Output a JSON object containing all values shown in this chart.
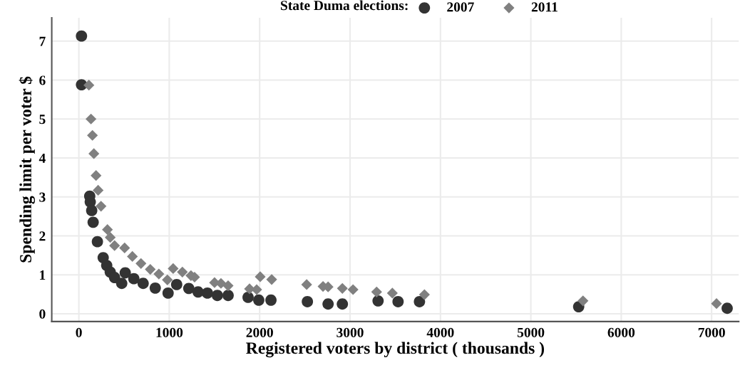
{
  "chart_data": {
    "type": "scatter",
    "xlabel": "Registered voters by district ( thousands )",
    "ylabel": "Spending limit per voter $",
    "legend_title": "State Duma elections:",
    "legend": "top",
    "xlim": [
      -300,
      7300
    ],
    "xticks": [
      0,
      1000,
      2000,
      3000,
      4000,
      5000,
      6000,
      7000
    ],
    "ylim": [
      -0.2,
      7.6
    ],
    "yticks": [
      0,
      1,
      2,
      3,
      4,
      5,
      6,
      7
    ],
    "grid": true,
    "series": [
      {
        "name": "2007",
        "color": "#333333",
        "marker": "circle",
        "x": [
          29,
          29,
          120,
          126,
          142,
          158,
          205,
          269,
          308,
          347,
          395,
          474,
          513,
          608,
          711,
          845,
          987,
          1082,
          1216,
          1319,
          1422,
          1532,
          1651,
          1872,
          1990,
          2125,
          2528,
          2757,
          2915,
          3310,
          3531,
          3768,
          5529,
          7172
        ],
        "values": [
          7.13,
          5.88,
          3.02,
          2.87,
          2.65,
          2.35,
          1.85,
          1.44,
          1.24,
          1.07,
          0.93,
          0.78,
          1.05,
          0.9,
          0.78,
          0.66,
          0.53,
          0.75,
          0.65,
          0.56,
          0.53,
          0.47,
          0.47,
          0.42,
          0.35,
          0.35,
          0.31,
          0.25,
          0.25,
          0.33,
          0.31,
          0.31,
          0.18,
          0.14
        ]
      },
      {
        "name": "2011",
        "color": "#808080",
        "marker": "diamond",
        "x": [
          111,
          134,
          150,
          166,
          190,
          213,
          245,
          316,
          347,
          395,
          506,
          592,
          687,
          790,
          885,
          979,
          1043,
          1145,
          1240,
          1280,
          1501,
          1572,
          1651,
          1888,
          1967,
          2006,
          2133,
          2520,
          2701,
          2757,
          2915,
          3033,
          3294,
          3468,
          3823,
          5577,
          7054
        ],
        "values": [
          5.87,
          5.0,
          4.58,
          4.11,
          3.55,
          3.17,
          2.76,
          2.16,
          1.96,
          1.75,
          1.69,
          1.47,
          1.29,
          1.14,
          1.02,
          0.87,
          1.16,
          1.07,
          0.98,
          0.94,
          0.8,
          0.78,
          0.72,
          0.64,
          0.62,
          0.95,
          0.88,
          0.75,
          0.7,
          0.69,
          0.65,
          0.62,
          0.56,
          0.53,
          0.49,
          0.33,
          0.26
        ]
      }
    ]
  }
}
